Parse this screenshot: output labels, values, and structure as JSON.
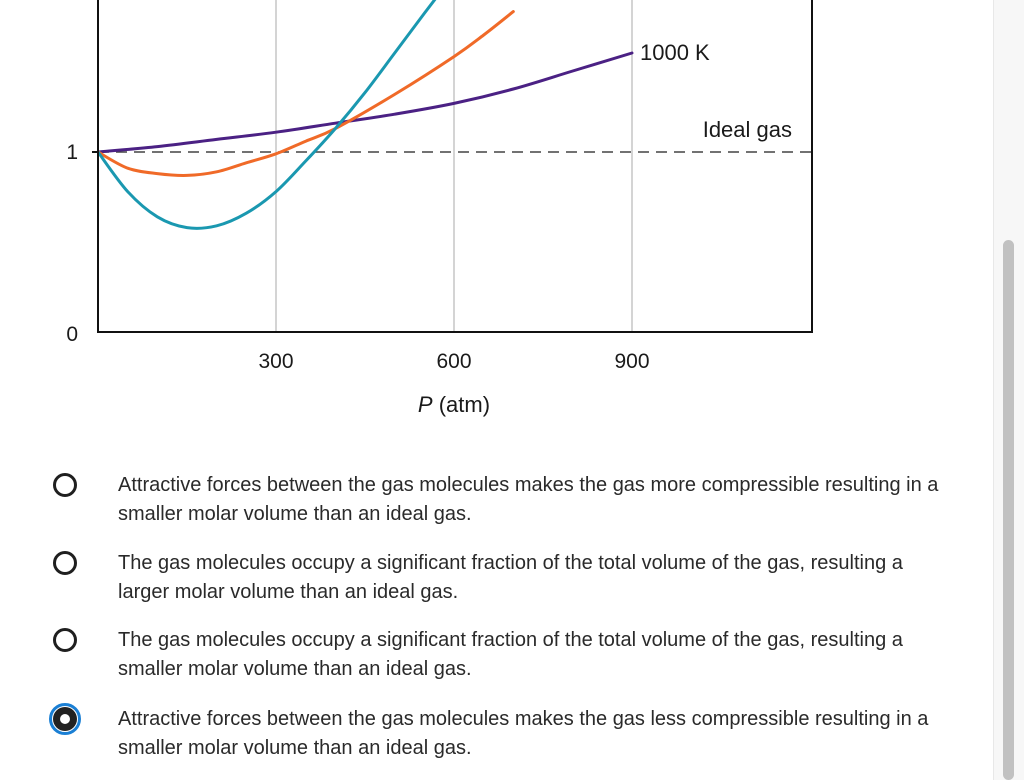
{
  "chart_data": {
    "type": "line",
    "xlabel": "P (atm)",
    "x_ticks": [
      300,
      600,
      900
    ],
    "y_ticks": [
      0,
      1
    ],
    "xlim": [
      0,
      1200
    ],
    "ylim": [
      0,
      1.9
    ],
    "grid": "vertical lines at x ticks",
    "reference_line": {
      "name": "Ideal gas",
      "y": 1,
      "style": "dashed",
      "color": "#444444"
    },
    "series": [
      {
        "name": "1000 K",
        "color": "#4b2184",
        "x": [
          0,
          100,
          200,
          300,
          400,
          500,
          600,
          700,
          800,
          900
        ],
        "y": [
          1.0,
          1.03,
          1.07,
          1.11,
          1.16,
          1.21,
          1.27,
          1.35,
          1.45,
          1.55
        ]
      },
      {
        "name": "",
        "color": "#f06a28",
        "x": [
          0,
          50,
          100,
          150,
          200,
          250,
          300,
          350,
          400,
          500,
          600,
          650,
          700
        ],
        "y": [
          1.0,
          0.91,
          0.88,
          0.87,
          0.89,
          0.94,
          0.99,
          1.06,
          1.13,
          1.32,
          1.53,
          1.65,
          1.78
        ]
      },
      {
        "name": "",
        "color": "#1a98b0",
        "x": [
          0,
          50,
          100,
          150,
          200,
          250,
          300,
          350,
          400,
          450,
          500,
          550,
          580
        ],
        "y": [
          1.0,
          0.78,
          0.64,
          0.58,
          0.59,
          0.66,
          0.78,
          0.95,
          1.13,
          1.33,
          1.55,
          1.77,
          1.9
        ]
      }
    ]
  },
  "options": [
    {
      "text": "Attractive forces between the gas molecules makes the gas more compressible resulting in a smaller molar volume than an ideal gas.",
      "selected": false
    },
    {
      "text": "The gas molecules occupy a significant fraction of the total volume of the gas, resulting a larger molar volume than an ideal gas.",
      "selected": false
    },
    {
      "text": "The gas molecules occupy a significant fraction of the total volume of the gas, resulting a smaller molar volume than an ideal gas.",
      "selected": false
    },
    {
      "text": "Attractive forces between the gas molecules makes the gas less compressible resulting in a smaller molar volume than an ideal gas.",
      "selected": true
    }
  ]
}
